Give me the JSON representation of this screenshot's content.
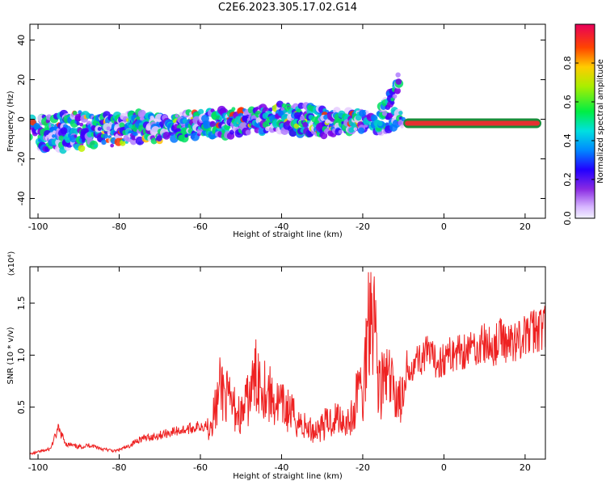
{
  "title": "C2E6.2023.305.17.02.G14",
  "chart_data": [
    {
      "type": "heatmap",
      "xlabel": "Height of straight line (km)",
      "ylabel": "Frequency (Hz)",
      "xlim": [
        -102,
        25
      ],
      "ylim": [
        -50,
        48
      ],
      "xticks": [
        -100,
        -80,
        -60,
        -40,
        -20,
        0,
        20
      ],
      "xtick_labels": [
        "-100",
        "-80",
        "-60",
        "-40",
        "-20",
        "0",
        "20"
      ],
      "yticks": [
        -40,
        -20,
        0,
        20,
        40
      ],
      "ytick_labels": [
        "-40",
        "-20",
        "0",
        "20",
        "40"
      ],
      "ridges": [
        {
          "x": [
            -102,
            -96,
            -90,
            -85,
            -80,
            -75,
            -70,
            -65,
            -60,
            -55,
            -50,
            -45,
            -40,
            -35,
            -30,
            -25,
            -20,
            -15,
            -12,
            -10
          ],
          "y": [
            -4,
            -3,
            -1,
            -3,
            -2,
            -1,
            -3,
            -2,
            -1,
            0,
            1,
            2,
            3,
            2,
            1,
            0,
            -1,
            -2,
            0,
            1
          ]
        },
        {
          "x": [
            -100,
            -95,
            -90,
            -85,
            -80,
            -75,
            -70,
            -65,
            -60,
            -55,
            -50,
            -45,
            -40,
            -35,
            -30,
            -25,
            -20
          ],
          "y": [
            -10,
            -11,
            -10,
            -9,
            -8,
            -7,
            -6,
            -5,
            -4,
            -4,
            -3,
            -2,
            -1,
            -3,
            -4,
            -2,
            -1
          ]
        },
        {
          "x": [
            -16,
            -14,
            -12,
            -11
          ],
          "y": [
            0,
            8,
            14,
            18
          ]
        },
        {
          "x": [
            -10,
            24
          ],
          "y": [
            -2,
            -2
          ]
        }
      ],
      "colorbar": {
        "label": "Normalized spectral amplitude",
        "range": [
          0,
          1
        ],
        "ticks": [
          0.0,
          0.2,
          0.4,
          0.6,
          0.8
        ],
        "tick_labels": [
          "0.0",
          "0.2",
          "0.4",
          "0.6",
          "0.8"
        ]
      }
    },
    {
      "type": "line",
      "xlabel": "Height of straight line (km)",
      "ylabel": "SNR (10 * v/v)",
      "multiplier_label": "(x10⁴)",
      "xlim": [
        -102,
        25
      ],
      "ylim": [
        0,
        1.85
      ],
      "xticks": [
        -100,
        -80,
        -60,
        -40,
        -20,
        0,
        20
      ],
      "xtick_labels": [
        "-100",
        "-80",
        "-60",
        "-40",
        "-20",
        "0",
        "20"
      ],
      "yticks": [
        0.5,
        1.0,
        1.5
      ],
      "ytick_labels": [
        "0.5",
        "1.0",
        "1.5"
      ],
      "color": "#ee2222",
      "x": [
        -102,
        -99,
        -97,
        -95,
        -93,
        -90,
        -87,
        -84,
        -81,
        -78,
        -75,
        -72,
        -69,
        -66,
        -63,
        -60,
        -58,
        -56,
        -55,
        -53,
        -50,
        -48,
        -46,
        -44,
        -42,
        -40,
        -38,
        -36,
        -34,
        -32,
        -30,
        -28,
        -26,
        -24,
        -22,
        -21,
        -20,
        -19,
        -18,
        -17,
        -16,
        -14,
        -12,
        -10,
        -9,
        -8,
        -6,
        -4,
        -2,
        0,
        2,
        4,
        6,
        8,
        10,
        12,
        14,
        16,
        18,
        20,
        22,
        25
      ],
      "y": [
        0.05,
        0.08,
        0.1,
        0.3,
        0.15,
        0.12,
        0.14,
        0.1,
        0.08,
        0.12,
        0.2,
        0.22,
        0.25,
        0.28,
        0.3,
        0.33,
        0.35,
        0.55,
        0.78,
        0.6,
        0.45,
        0.65,
        0.9,
        0.75,
        0.62,
        0.55,
        0.5,
        0.4,
        0.33,
        0.3,
        0.35,
        0.4,
        0.45,
        0.4,
        0.45,
        0.9,
        0.55,
        1.3,
        1.8,
        1.45,
        0.75,
        0.85,
        0.7,
        0.6,
        0.82,
        0.95,
        1.0,
        1.05,
        0.97,
        1.0,
        1.05,
        1.08,
        1.1,
        1.12,
        1.15,
        1.1,
        1.2,
        1.15,
        1.2,
        1.22,
        1.28,
        1.32
      ]
    }
  ]
}
